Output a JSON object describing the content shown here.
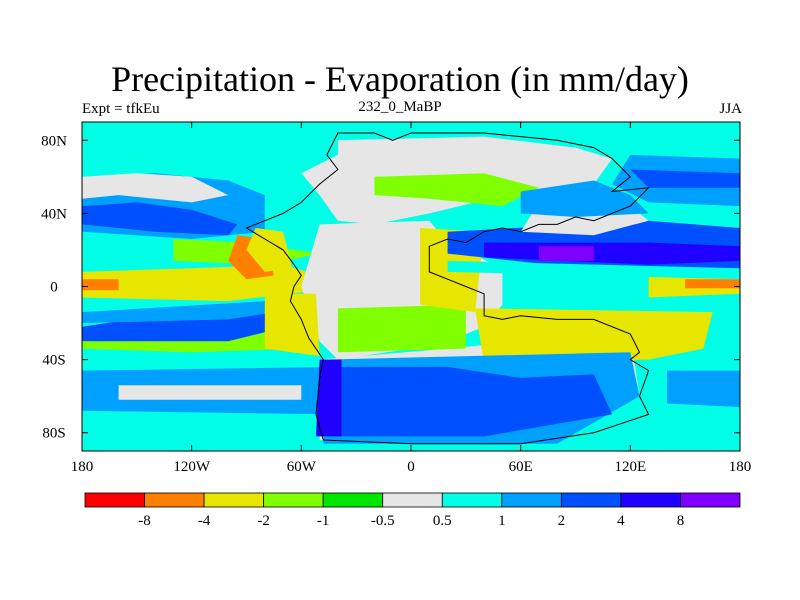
{
  "chart_data": {
    "type": "heatmap",
    "title": "Precipitation - Evaporation (in mm/day)",
    "subtitle_left": "Expt = tfkEu",
    "subtitle_center": "232_0_MaBP",
    "subtitle_right": "JJA",
    "xlim": [
      -180,
      180
    ],
    "ylim": [
      -90,
      90
    ],
    "x_ticks": [
      {
        "value": -180,
        "label": "180"
      },
      {
        "value": -120,
        "label": "120W"
      },
      {
        "value": -60,
        "label": "60W"
      },
      {
        "value": 0,
        "label": "0"
      },
      {
        "value": 60,
        "label": "60E"
      },
      {
        "value": 120,
        "label": "120E"
      },
      {
        "value": 180,
        "label": "180"
      }
    ],
    "y_ticks": [
      {
        "value": 80,
        "label": "80N"
      },
      {
        "value": 40,
        "label": "40N"
      },
      {
        "value": 0,
        "label": "0"
      },
      {
        "value": -40,
        "label": "40S"
      },
      {
        "value": -80,
        "label": "80S"
      }
    ],
    "colorbar": {
      "colors": [
        "#ff0000",
        "#ff8000",
        "#e6e600",
        "#80ff00",
        "#00e600",
        "#e6e6e6",
        "#00ffe6",
        "#00a0ff",
        "#0050ff",
        "#2000ff",
        "#8000ff"
      ],
      "labels": [
        "-8",
        "-4",
        "-2",
        "-1",
        "-0.5",
        "0.5",
        "1",
        "2",
        "4",
        "8"
      ]
    },
    "field": {
      "description_levels": "level index 0..10 corresponds to colorbar colors",
      "regions": [
        {
          "name": "background ocean",
          "level": 6
        },
        {
          "name": "northern subtropical ocean",
          "level": 7
        },
        {
          "name": "north pacific dry tongue",
          "level": 8
        },
        {
          "name": "equatorial dry belt",
          "level": 2
        },
        {
          "name": "equatorial west pacific",
          "level": 3
        },
        {
          "name": "southern subtropical ocean",
          "level": 7
        },
        {
          "name": "southern midlatitude belt",
          "level": 7
        },
        {
          "name": "pangea interior",
          "level": 5
        },
        {
          "name": "eastern tethys wet",
          "level": 8
        },
        {
          "name": "tethys maximum",
          "level": 10
        },
        {
          "name": "southern gondwana wet",
          "level": 8
        },
        {
          "name": "eastern pangea arid",
          "level": 1
        },
        {
          "name": "southern tethys arid",
          "level": 1
        },
        {
          "name": "western pangea arid",
          "level": 1
        }
      ]
    }
  }
}
